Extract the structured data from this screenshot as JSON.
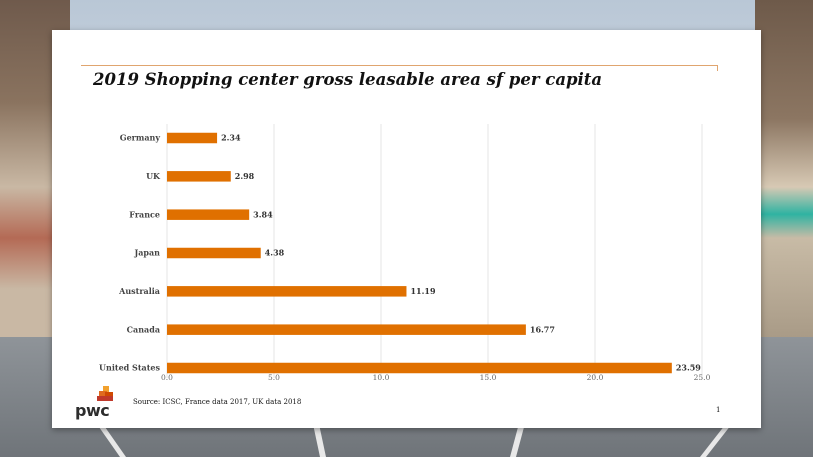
{
  "slide": {
    "title": "2019 Shopping center gross leasable area sf per capita",
    "source": "Source:  ICSC, France data 2017, UK data 2018",
    "page_number": "1",
    "logo_text": "pwc"
  },
  "colors": {
    "bar": "#e07000",
    "grid": "#e4e4e4",
    "rule": "#e0a56f"
  },
  "chart_data": {
    "type": "bar",
    "orientation": "horizontal",
    "title": "2019 Shopping center gross leasable area sf per capita",
    "categories": [
      "Germany",
      "UK",
      "France",
      "Japan",
      "Australia",
      "Canada",
      "United States"
    ],
    "values": [
      2.34,
      2.98,
      3.84,
      4.38,
      11.19,
      16.77,
      23.59
    ],
    "value_labels": [
      "2.34",
      "2.98",
      "3.84",
      "4.38",
      "11.19",
      "16.77",
      "23.59"
    ],
    "xlim": [
      0,
      25
    ],
    "xticks": [
      "0.0",
      "5.0",
      "10.0",
      "15.0",
      "20.0",
      "25.0"
    ],
    "grid": true,
    "legend": "none"
  }
}
